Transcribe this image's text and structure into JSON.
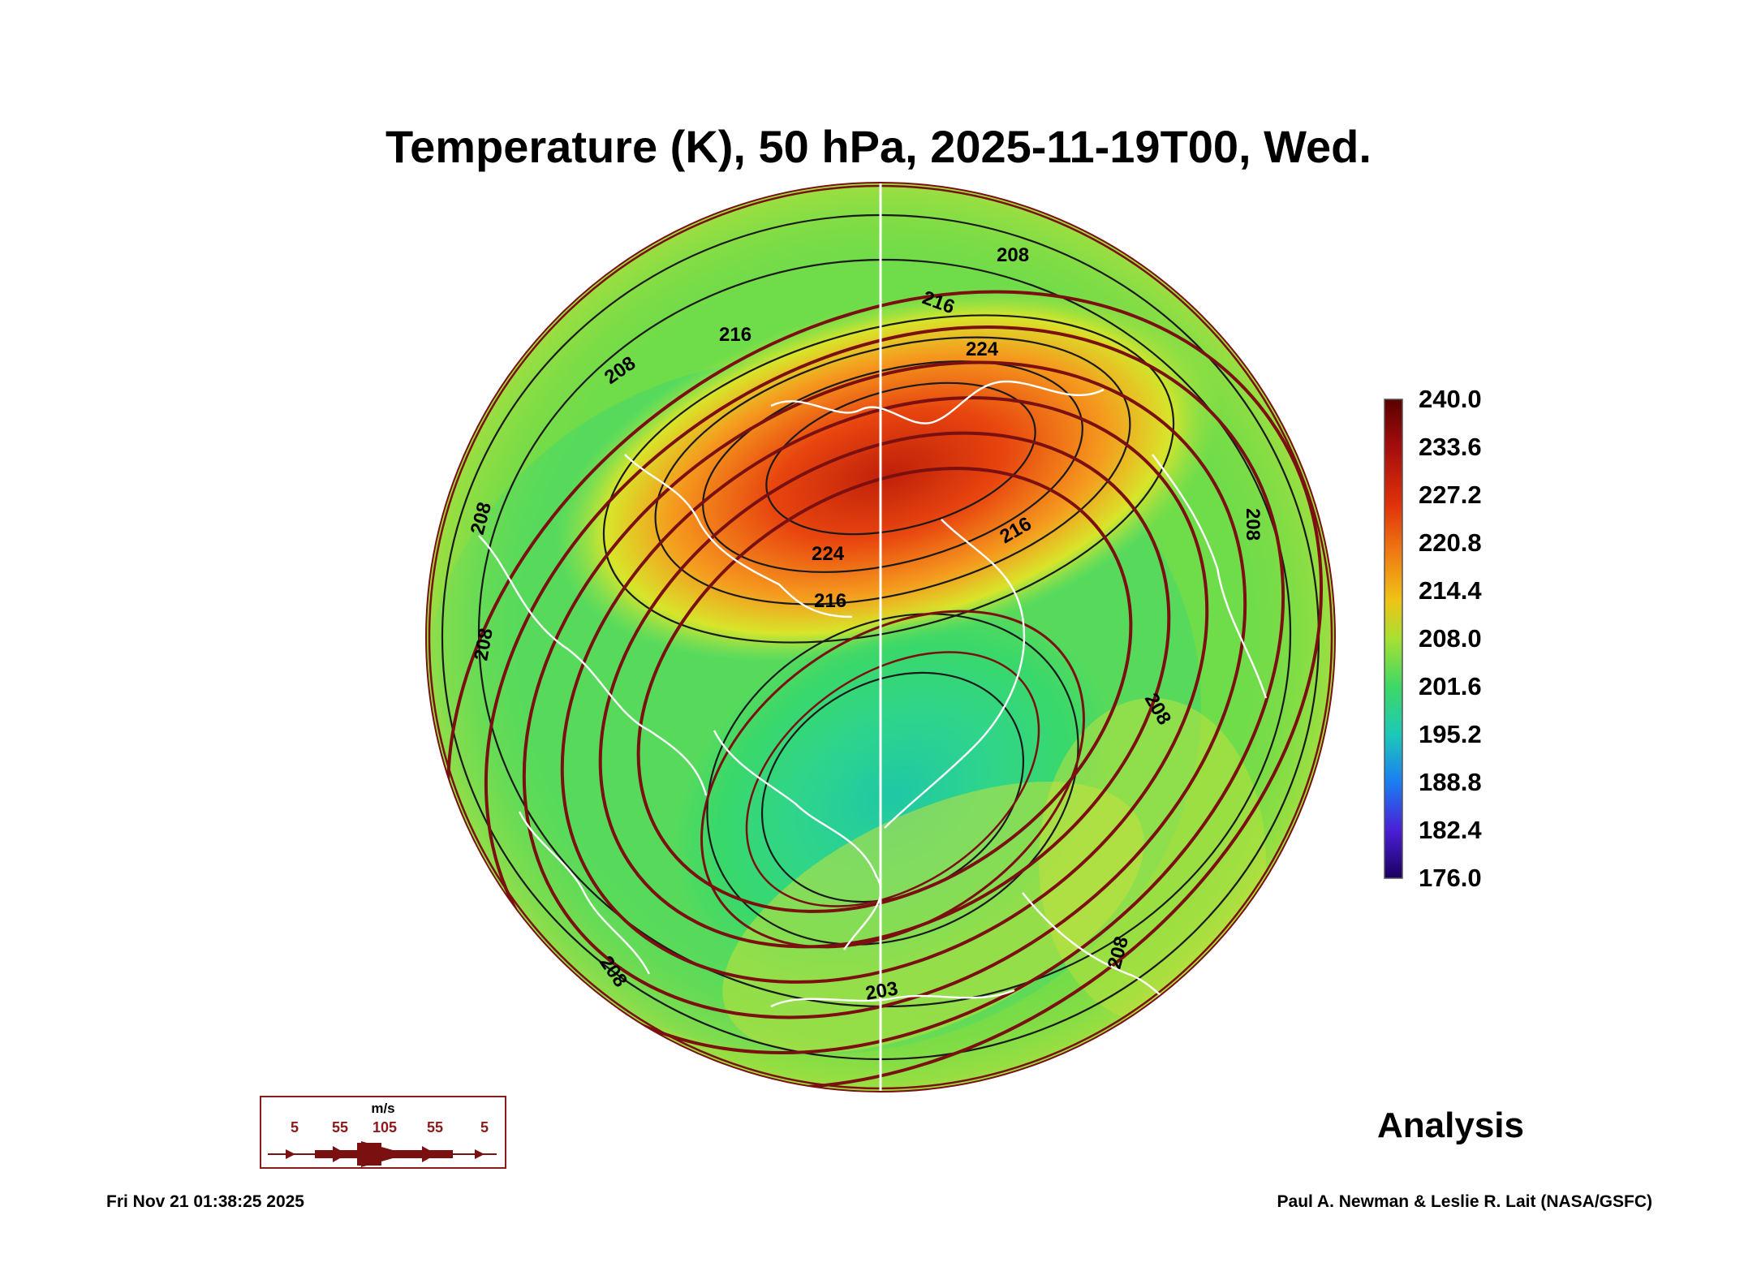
{
  "title": "Temperature (K), 50 hPa, 2025-11-19T00, Wed.",
  "colorbar": {
    "labels": [
      "240.0",
      "233.6",
      "227.2",
      "220.8",
      "214.4",
      "208.0",
      "201.6",
      "195.2",
      "188.8",
      "182.4",
      "176.0"
    ],
    "min": 176.0,
    "max": 240.0
  },
  "contour_labels": [
    "208",
    "208",
    "216",
    "216",
    "224",
    "224",
    "216",
    "216",
    "208",
    "208",
    "208",
    "208",
    "208",
    "208",
    "203"
  ],
  "wind_legend": {
    "unit": "m/s",
    "values": [
      "5",
      "55",
      "105",
      "55",
      "5"
    ]
  },
  "status": "Analysis",
  "timestamp": "Fri Nov 21 01:38:25 2025",
  "credit": "Paul A. Newman & Leslie R. Lait (NASA/GSFC)",
  "colors": {
    "streamline": "#7a1010",
    "contour": "#1a1a1a",
    "coastline": "#ffffff"
  }
}
